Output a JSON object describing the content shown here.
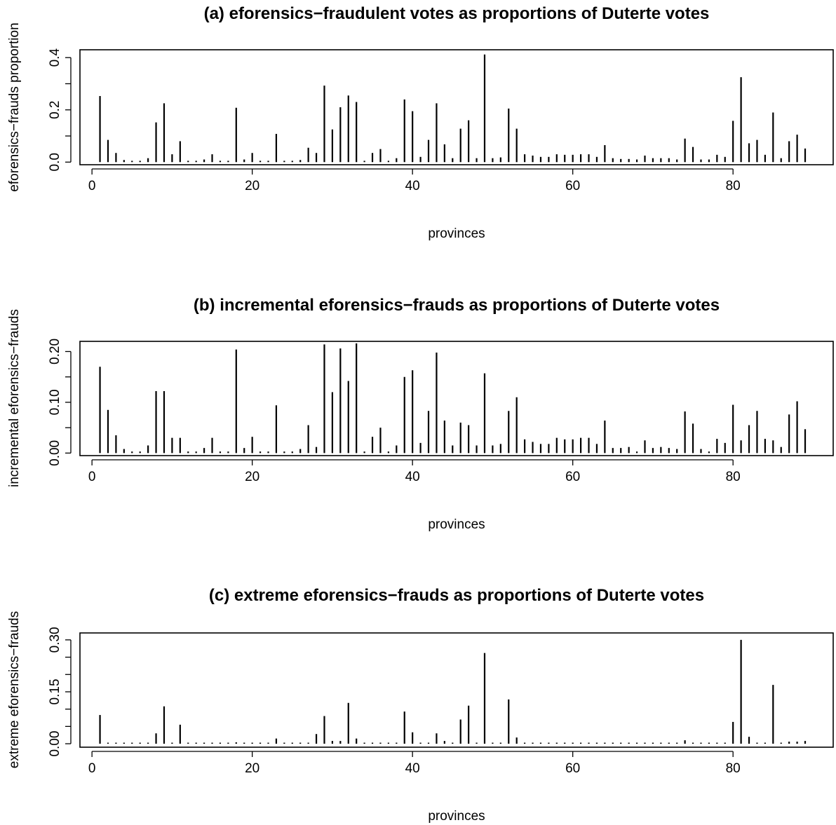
{
  "chart_data": [
    {
      "type": "bar",
      "title": "(a) eforensics−fraudulent votes as proportions of Duterte votes",
      "xlabel": "provinces",
      "ylabel": "eforensics−frauds proportion",
      "xlim": [
        -1.5,
        92.5
      ],
      "ylim": [
        -0.01,
        0.43
      ],
      "xticks": [
        0,
        20,
        40,
        60,
        80
      ],
      "xtick_labels": [
        "0",
        "20",
        "40",
        "60",
        "80"
      ],
      "yticks": [
        0.0,
        0.2,
        0.4
      ],
      "ytick_labels": [
        "0.0",
        "0.2",
        "0.4"
      ],
      "yticks_minor": [
        0.1,
        0.3
      ],
      "x": [
        1,
        2,
        3,
        4,
        5,
        6,
        7,
        8,
        9,
        10,
        11,
        12,
        13,
        14,
        15,
        16,
        17,
        18,
        19,
        20,
        21,
        22,
        23,
        24,
        25,
        26,
        27,
        28,
        29,
        30,
        31,
        32,
        33,
        34,
        35,
        36,
        37,
        38,
        39,
        40,
        41,
        42,
        43,
        44,
        45,
        46,
        47,
        48,
        49,
        50,
        51,
        52,
        53,
        54,
        55,
        56,
        57,
        58,
        59,
        60,
        61,
        62,
        63,
        64,
        65,
        66,
        67,
        68,
        69,
        70,
        71,
        72,
        73,
        74,
        75,
        76,
        77,
        78,
        79,
        80,
        81,
        82,
        83,
        84,
        85,
        86,
        87,
        88,
        89
      ],
      "values": [
        0.253,
        0.085,
        0.035,
        0.008,
        0.005,
        0.005,
        0.015,
        0.152,
        0.225,
        0.03,
        0.08,
        0.005,
        0.005,
        0.01,
        0.03,
        0.005,
        0.005,
        0.208,
        0.01,
        0.035,
        0.005,
        0.005,
        0.108,
        0.005,
        0.005,
        0.008,
        0.055,
        0.035,
        0.293,
        0.125,
        0.21,
        0.255,
        0.23,
        0.005,
        0.035,
        0.05,
        0.005,
        0.015,
        0.24,
        0.195,
        0.02,
        0.085,
        0.225,
        0.068,
        0.015,
        0.128,
        0.16,
        0.015,
        0.412,
        0.015,
        0.018,
        0.205,
        0.128,
        0.03,
        0.025,
        0.02,
        0.02,
        0.03,
        0.028,
        0.028,
        0.03,
        0.03,
        0.02,
        0.065,
        0.015,
        0.012,
        0.012,
        0.01,
        0.025,
        0.015,
        0.015,
        0.015,
        0.01,
        0.09,
        0.058,
        0.01,
        0.01,
        0.028,
        0.02,
        0.158,
        0.325,
        0.072,
        0.085,
        0.028,
        0.19,
        0.015,
        0.08,
        0.105,
        0.052
      ]
    },
    {
      "type": "bar",
      "title": "(b) incremental eforensics−frauds as proportions of Duterte votes",
      "xlabel": "provinces",
      "ylabel": "incremental eforensics−frauds",
      "xlim": [
        -1.5,
        92.5
      ],
      "ylim": [
        -0.005,
        0.22
      ],
      "xticks": [
        0,
        20,
        40,
        60,
        80
      ],
      "xtick_labels": [
        "0",
        "20",
        "40",
        "60",
        "80"
      ],
      "yticks": [
        0.0,
        0.1,
        0.2
      ],
      "ytick_labels": [
        "0.00",
        "0.10",
        "0.20"
      ],
      "yticks_minor": [
        0.05,
        0.15
      ],
      "x": [
        1,
        2,
        3,
        4,
        5,
        6,
        7,
        8,
        9,
        10,
        11,
        12,
        13,
        14,
        15,
        16,
        17,
        18,
        19,
        20,
        21,
        22,
        23,
        24,
        25,
        26,
        27,
        28,
        29,
        30,
        31,
        32,
        33,
        34,
        35,
        36,
        37,
        38,
        39,
        40,
        41,
        42,
        43,
        44,
        45,
        46,
        47,
        48,
        49,
        50,
        51,
        52,
        53,
        54,
        55,
        56,
        57,
        58,
        59,
        60,
        61,
        62,
        63,
        64,
        65,
        66,
        67,
        68,
        69,
        70,
        71,
        72,
        73,
        74,
        75,
        76,
        77,
        78,
        79,
        80,
        81,
        82,
        83,
        84,
        85,
        86,
        87,
        88,
        89
      ],
      "values": [
        0.17,
        0.085,
        0.035,
        0.008,
        0.003,
        0.003,
        0.015,
        0.122,
        0.122,
        0.03,
        0.03,
        0.003,
        0.003,
        0.01,
        0.03,
        0.003,
        0.003,
        0.204,
        0.01,
        0.032,
        0.003,
        0.003,
        0.094,
        0.003,
        0.003,
        0.008,
        0.055,
        0.012,
        0.214,
        0.12,
        0.206,
        0.142,
        0.216,
        0.003,
        0.032,
        0.05,
        0.003,
        0.015,
        0.15,
        0.163,
        0.02,
        0.083,
        0.198,
        0.064,
        0.015,
        0.06,
        0.055,
        0.015,
        0.157,
        0.015,
        0.018,
        0.083,
        0.11,
        0.027,
        0.022,
        0.018,
        0.018,
        0.03,
        0.027,
        0.027,
        0.03,
        0.03,
        0.018,
        0.064,
        0.01,
        0.01,
        0.012,
        0.003,
        0.025,
        0.01,
        0.012,
        0.01,
        0.008,
        0.082,
        0.058,
        0.008,
        0.003,
        0.028,
        0.02,
        0.095,
        0.025,
        0.055,
        0.083,
        0.028,
        0.025,
        0.012,
        0.076,
        0.102,
        0.047
      ]
    },
    {
      "type": "bar",
      "title": "(c) extreme eforensics−frauds as proportions of Duterte votes",
      "xlabel": "provinces",
      "ylabel": "extreme eforensics−frauds",
      "xlim": [
        -1.5,
        92.5
      ],
      "ylim": [
        -0.01,
        0.32
      ],
      "xticks": [
        0,
        20,
        40,
        60,
        80
      ],
      "xtick_labels": [
        "0",
        "20",
        "40",
        "60",
        "80"
      ],
      "yticks": [
        0.0,
        0.15,
        0.3
      ],
      "ytick_labels": [
        "0.00",
        "0.15",
        "0.30"
      ],
      "yticks_minor": [
        0.05,
        0.1,
        0.2,
        0.25
      ],
      "x": [
        1,
        2,
        3,
        4,
        5,
        6,
        7,
        8,
        9,
        10,
        11,
        12,
        13,
        14,
        15,
        16,
        17,
        18,
        19,
        20,
        21,
        22,
        23,
        24,
        25,
        26,
        27,
        28,
        29,
        30,
        31,
        32,
        33,
        34,
        35,
        36,
        37,
        38,
        39,
        40,
        41,
        42,
        43,
        44,
        45,
        46,
        47,
        48,
        49,
        50,
        51,
        52,
        53,
        54,
        55,
        56,
        57,
        58,
        59,
        60,
        61,
        62,
        63,
        64,
        65,
        66,
        67,
        68,
        69,
        70,
        71,
        72,
        73,
        74,
        75,
        76,
        77,
        78,
        79,
        80,
        81,
        82,
        83,
        84,
        85,
        86,
        87,
        88,
        89
      ],
      "values": [
        0.083,
        0.002,
        0.002,
        0.002,
        0.002,
        0.002,
        0.002,
        0.03,
        0.108,
        0.003,
        0.055,
        0.002,
        0.002,
        0.002,
        0.002,
        0.002,
        0.002,
        0.004,
        0.002,
        0.002,
        0.002,
        0.002,
        0.015,
        0.002,
        0.002,
        0.002,
        0.002,
        0.028,
        0.08,
        0.008,
        0.008,
        0.118,
        0.015,
        0.002,
        0.002,
        0.002,
        0.002,
        0.002,
        0.093,
        0.033,
        0.002,
        0.002,
        0.03,
        0.008,
        0.002,
        0.07,
        0.11,
        0.002,
        0.262,
        0.002,
        0.002,
        0.128,
        0.018,
        0.002,
        0.002,
        0.002,
        0.002,
        0.002,
        0.002,
        0.002,
        0.002,
        0.002,
        0.002,
        0.002,
        0.002,
        0.002,
        0.002,
        0.002,
        0.002,
        0.002,
        0.002,
        0.002,
        0.002,
        0.01,
        0.002,
        0.002,
        0.002,
        0.002,
        0.002,
        0.063,
        0.3,
        0.02,
        0.002,
        0.002,
        0.17,
        0.002,
        0.006,
        0.006,
        0.008
      ]
    }
  ]
}
